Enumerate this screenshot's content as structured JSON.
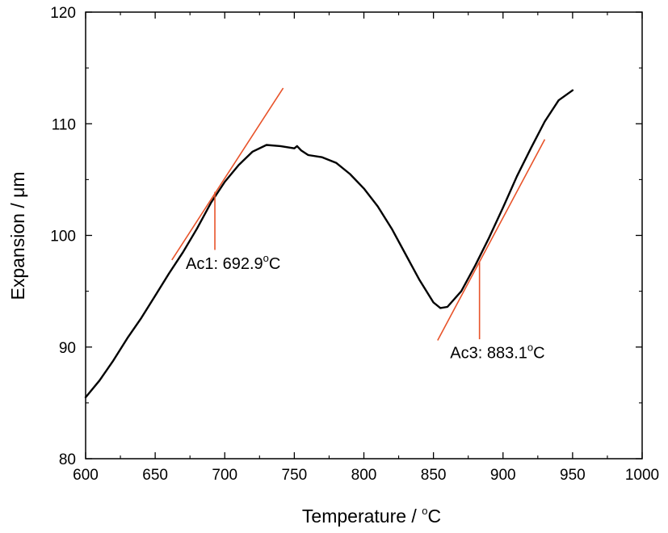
{
  "chart_data": {
    "type": "line",
    "xlabel": {
      "main": "Temperature / ",
      "sup": "o",
      "unit": "C"
    },
    "ylabel": "Expansion / μm",
    "xlim": [
      600,
      1000
    ],
    "ylim": [
      80,
      120
    ],
    "x_ticks": [
      600,
      650,
      700,
      750,
      800,
      850,
      900,
      950,
      1000
    ],
    "y_ticks": [
      80,
      90,
      100,
      110,
      120
    ],
    "x_tick_labels": [
      "600",
      "650",
      "700",
      "750",
      "800",
      "850",
      "900",
      "950",
      "1000"
    ],
    "y_tick_labels": [
      "80",
      "90",
      "100",
      "110",
      "120"
    ],
    "grid": false,
    "series": [
      {
        "color": "#000000",
        "points": [
          [
            600,
            85.5
          ],
          [
            610,
            87.0
          ],
          [
            620,
            88.8
          ],
          [
            630,
            90.8
          ],
          [
            640,
            92.6
          ],
          [
            650,
            94.6
          ],
          [
            660,
            96.6
          ],
          [
            670,
            98.5
          ],
          [
            680,
            100.6
          ],
          [
            690,
            102.9
          ],
          [
            700,
            104.8
          ],
          [
            710,
            106.3
          ],
          [
            720,
            107.5
          ],
          [
            730,
            108.1
          ],
          [
            740,
            108.0
          ],
          [
            750,
            107.8
          ],
          [
            752,
            108.0
          ],
          [
            755,
            107.6
          ],
          [
            760,
            107.2
          ],
          [
            770,
            107.0
          ],
          [
            780,
            106.5
          ],
          [
            790,
            105.5
          ],
          [
            800,
            104.2
          ],
          [
            810,
            102.6
          ],
          [
            820,
            100.6
          ],
          [
            830,
            98.3
          ],
          [
            840,
            96.0
          ],
          [
            850,
            94.0
          ],
          [
            855,
            93.5
          ],
          [
            860,
            93.6
          ],
          [
            870,
            95.0
          ],
          [
            880,
            97.3
          ],
          [
            890,
            99.8
          ],
          [
            900,
            102.5
          ],
          [
            910,
            105.3
          ],
          [
            920,
            107.8
          ],
          [
            930,
            110.2
          ],
          [
            940,
            112.1
          ],
          [
            950,
            113.0
          ]
        ]
      }
    ],
    "tangent_lines": [
      {
        "color": "#e8532a",
        "from": [
          662,
          97.8
        ],
        "to": [
          742,
          113.2
        ]
      },
      {
        "color": "#e8532a",
        "from": [
          853,
          90.6
        ],
        "to": [
          930,
          108.6
        ]
      }
    ],
    "annotations": [
      {
        "label": "Ac1: 692.9",
        "sup": "o",
        "unit": "C",
        "x": 692.9,
        "marker_top_y": 103.9,
        "marker_bottom_y": 98.7,
        "text_x": 672,
        "text_y": 97.0,
        "color": "#e8532a"
      },
      {
        "label": "Ac3: 883.1",
        "sup": "o",
        "unit": "C",
        "x": 883.1,
        "marker_top_y": 97.6,
        "marker_bottom_y": 90.7,
        "text_x": 862,
        "text_y": 89.0,
        "color": "#e8532a"
      }
    ]
  }
}
